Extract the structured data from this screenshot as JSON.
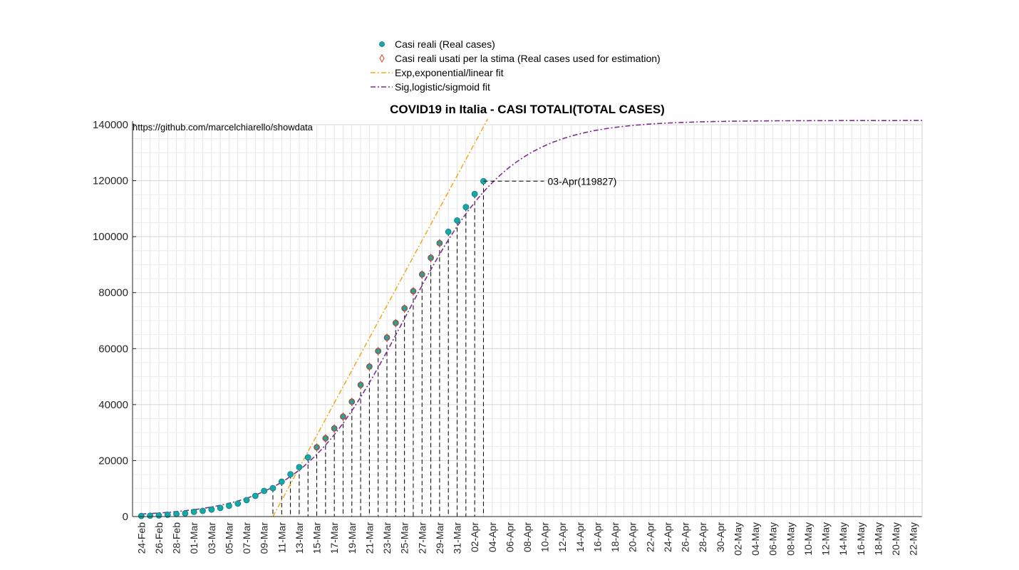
{
  "chart_data": {
    "type": "line",
    "title": "COVID19 in Italia - CASI TOTALI(TOTAL CASES)",
    "source_text": "https://github.com/marcelchiarello/showdata",
    "annotation": {
      "date": "03-Apr",
      "value": 119827,
      "text": "03-Apr(119827)"
    },
    "ylim": [
      0,
      140000
    ],
    "yticks": [
      0,
      20000,
      40000,
      60000,
      80000,
      100000,
      120000,
      140000
    ],
    "ytick_labels": [
      "0",
      "20000",
      "40000",
      "60000",
      "80000",
      "100000",
      "120000",
      "140000"
    ],
    "x_start": "24-Feb",
    "x_end": "23-May",
    "grid": true,
    "legend_position": "top",
    "x_tick_labels": [
      "24-Feb",
      "26-Feb",
      "28-Feb",
      "01-Mar",
      "03-Mar",
      "05-Mar",
      "07-Mar",
      "09-Mar",
      "11-Mar",
      "13-Mar",
      "15-Mar",
      "17-Mar",
      "19-Mar",
      "21-Mar",
      "23-Mar",
      "25-Mar",
      "27-Mar",
      "29-Mar",
      "31-Mar",
      "02-Apr",
      "04-Apr",
      "06-Apr",
      "08-Apr",
      "10-Apr",
      "12-Apr",
      "14-Apr",
      "16-Apr",
      "18-Apr",
      "20-Apr",
      "22-Apr",
      "24-Apr",
      "26-Apr",
      "28-Apr",
      "30-Apr",
      "02-May",
      "04-May",
      "06-May",
      "08-May",
      "10-May",
      "12-May",
      "14-May",
      "16-May",
      "18-May",
      "20-May",
      "22-May"
    ],
    "series": [
      {
        "name": "Casi reali (Real cases)",
        "kind": "marker-circle",
        "color": "#16a8a8",
        "x": [
          "24-Feb",
          "25-Feb",
          "26-Feb",
          "27-Feb",
          "28-Feb",
          "29-Feb",
          "01-Mar",
          "02-Mar",
          "03-Mar",
          "04-Mar",
          "05-Mar",
          "06-Mar",
          "07-Mar",
          "08-Mar",
          "09-Mar",
          "10-Mar",
          "11-Mar",
          "12-Mar",
          "13-Mar",
          "14-Mar",
          "15-Mar",
          "16-Mar",
          "17-Mar",
          "18-Mar",
          "19-Mar",
          "20-Mar",
          "21-Mar",
          "22-Mar",
          "23-Mar",
          "24-Mar",
          "25-Mar",
          "26-Mar",
          "27-Mar",
          "28-Mar",
          "29-Mar",
          "30-Mar",
          "31-Mar",
          "01-Apr",
          "02-Apr",
          "03-Apr"
        ],
        "values": [
          229,
          322,
          400,
          650,
          888,
          1128,
          1694,
          2036,
          2502,
          3089,
          3858,
          4636,
          5883,
          7375,
          9172,
          10149,
          12462,
          15113,
          17660,
          21157,
          24747,
          27980,
          31506,
          35713,
          41035,
          47021,
          53578,
          59138,
          63927,
          69176,
          74386,
          80539,
          86498,
          92472,
          97689,
          101739,
          105792,
          110574,
          115242,
          119827
        ]
      },
      {
        "name": "Casi reali usati per la stima (Real cases used for estimation)",
        "kind": "marker-diamond",
        "color": "#e8401c",
        "x": [
          "15-Mar",
          "16-Mar",
          "17-Mar",
          "18-Mar",
          "19-Mar",
          "20-Mar",
          "21-Mar",
          "22-Mar",
          "23-Mar",
          "24-Mar",
          "25-Mar",
          "26-Mar",
          "27-Mar",
          "28-Mar",
          "29-Mar"
        ],
        "values": [
          24747,
          27980,
          31506,
          35713,
          41035,
          47021,
          53578,
          59138,
          63927,
          69176,
          74386,
          80539,
          86498,
          92472,
          97689
        ]
      },
      {
        "name": "Exp,exponential/linear fit",
        "kind": "line",
        "color": "#f0a81c",
        "linear_fit": {
          "x0": "10-Mar",
          "y0": 0,
          "slope_per_day": 5800
        }
      },
      {
        "name": "Sig,logistic/sigmoid fit",
        "kind": "line",
        "color": "#7e2f8e",
        "logistic_fit": {
          "K": 141500,
          "r": 0.168,
          "midpoint": "25-Mar"
        }
      }
    ]
  }
}
